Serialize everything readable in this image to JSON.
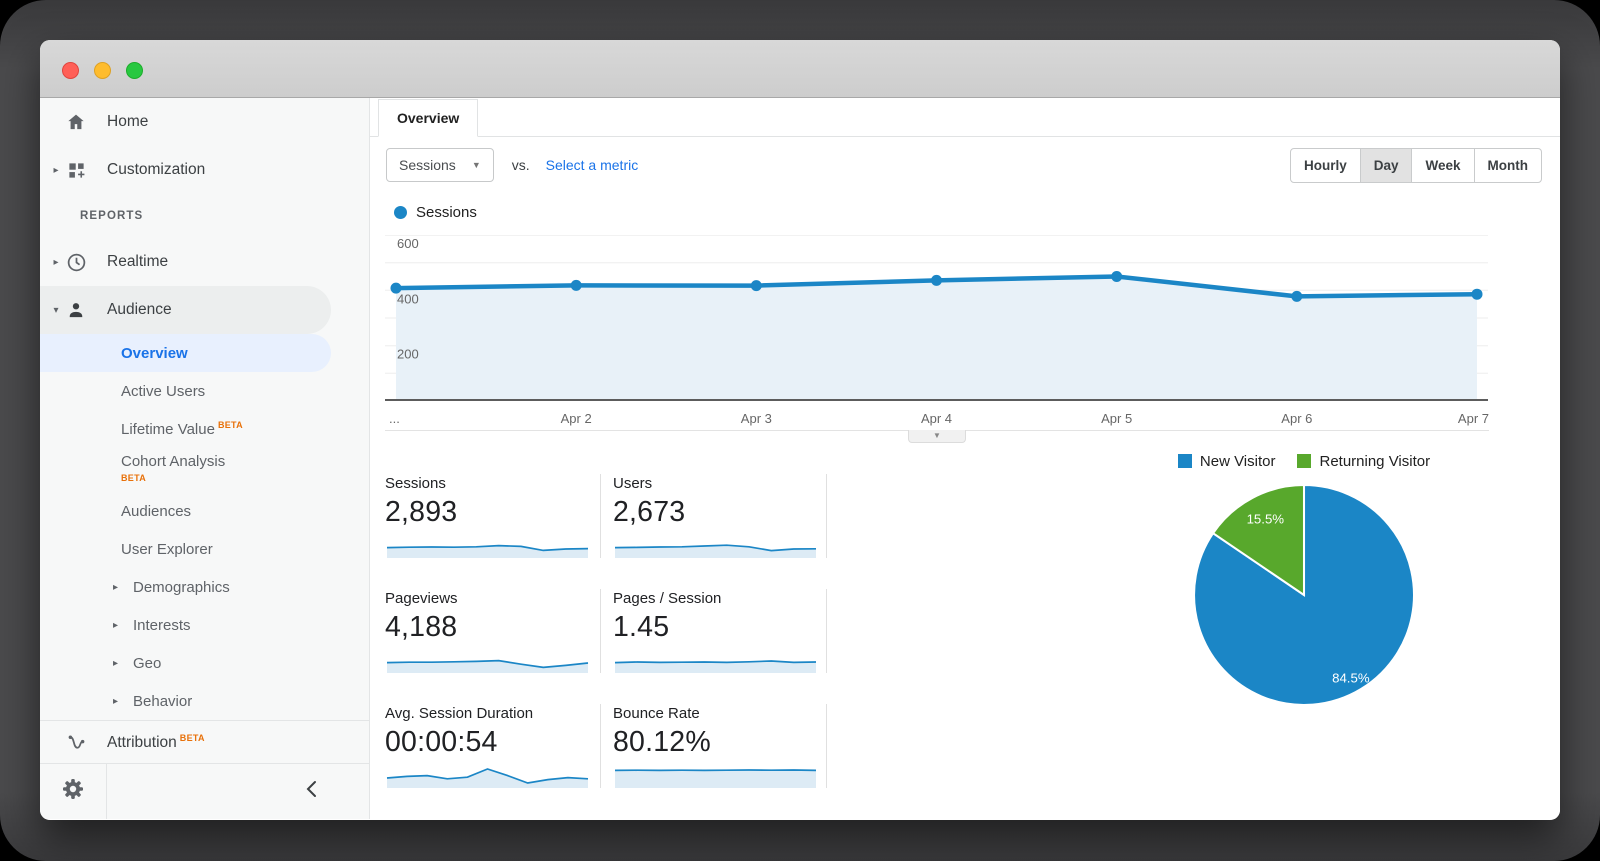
{
  "window": {
    "traffic_lights": [
      "close",
      "minimize",
      "fullscreen"
    ]
  },
  "sidebar": {
    "home": "Home",
    "customization": "Customization",
    "reports_label": "REPORTS",
    "realtime": "Realtime",
    "audience": "Audience",
    "overview": "Overview",
    "active_users": "Active Users",
    "lifetime_value": "Lifetime Value",
    "cohort_analysis": "Cohort Analysis",
    "audiences": "Audiences",
    "user_explorer": "User Explorer",
    "demographics": "Demographics",
    "interests": "Interests",
    "geo": "Geo",
    "behavior": "Behavior",
    "attribution": "Attribution",
    "beta": "BETA"
  },
  "header": {
    "tab": "Overview",
    "metric_selector": "Sessions",
    "vs": "vs.",
    "select_metric": "Select a metric",
    "granularity": [
      "Hourly",
      "Day",
      "Week",
      "Month"
    ],
    "granularity_active": "Day"
  },
  "colors": {
    "blue": "#1b86c6",
    "green": "#58a82c",
    "area_fill": "#e8f1f8",
    "link_blue": "#1a73e8",
    "beta_orange": "#e8710a"
  },
  "chart_data": [
    {
      "type": "line",
      "title": "Sessions",
      "series": [
        {
          "name": "Sessions",
          "values": [
            408,
            418,
            417,
            436,
            450,
            378,
            386
          ]
        }
      ],
      "x_labels": [
        "...",
        "Apr 2",
        "Apr 3",
        "Apr 4",
        "Apr 5",
        "Apr 6",
        "Apr 7"
      ],
      "ylim": [
        0,
        600
      ],
      "yticks": [
        200,
        400,
        600
      ],
      "gridlines_every": 100,
      "grid": true,
      "legend_position": "top-left",
      "line_color": "#1b86c6",
      "fill_color": "#e8f1f8"
    },
    {
      "type": "pie",
      "legend": [
        "New Visitor",
        "Returning Visitor"
      ],
      "labels": [
        "New Visitor",
        "Returning Visitor"
      ],
      "values": [
        84.5,
        15.5
      ],
      "slice_labels": [
        "84.5%",
        "15.5%"
      ],
      "colors": [
        "#1b86c6",
        "#58a82c"
      ]
    }
  ],
  "metrics": [
    {
      "label": "Sessions",
      "value": "2,893",
      "spark": [
        0.42,
        0.44,
        0.45,
        0.44,
        0.46,
        0.52,
        0.48,
        0.28,
        0.35,
        0.37
      ]
    },
    {
      "label": "Users",
      "value": "2,673",
      "spark": [
        0.42,
        0.43,
        0.45,
        0.46,
        0.5,
        0.54,
        0.46,
        0.27,
        0.35,
        0.36
      ]
    },
    {
      "label": "Pageviews",
      "value": "4,188",
      "spark": [
        0.42,
        0.44,
        0.44,
        0.46,
        0.48,
        0.52,
        0.34,
        0.18,
        0.28,
        0.4
      ]
    },
    {
      "label": "Pages / Session",
      "value": "1.45",
      "spark": [
        0.42,
        0.45,
        0.43,
        0.44,
        0.45,
        0.43,
        0.46,
        0.5,
        0.43,
        0.45
      ]
    },
    {
      "label": "Avg. Session Duration",
      "value": "00:00:54",
      "spark": [
        0.4,
        0.48,
        0.52,
        0.36,
        0.44,
        0.85,
        0.52,
        0.15,
        0.32,
        0.42,
        0.36
      ]
    },
    {
      "label": "Bounce Rate",
      "value": "80.12%",
      "spark": [
        0.78,
        0.79,
        0.78,
        0.79,
        0.78,
        0.79,
        0.8,
        0.79,
        0.8,
        0.78
      ]
    }
  ]
}
